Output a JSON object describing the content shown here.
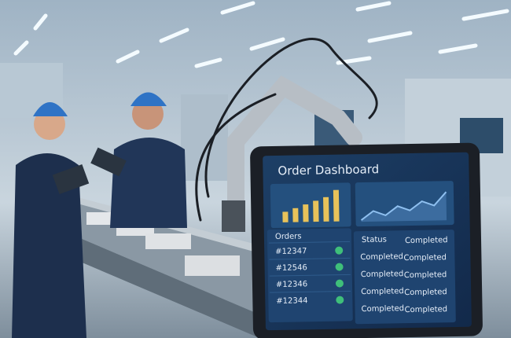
{
  "dashboard": {
    "title": "Order Dashboard",
    "bar_chart": {
      "values": [
        3,
        4,
        5,
        6,
        7,
        9
      ],
      "color": "#e8c25a"
    },
    "line_chart": {
      "values": [
        3,
        5,
        4,
        6,
        5,
        7,
        6,
        9
      ],
      "color": "#5b8fc7"
    },
    "orders": {
      "header": "Orders",
      "rows": [
        "#12347",
        "#12546",
        "#12346",
        "#12344"
      ]
    },
    "status": {
      "header": [
        "Status",
        "Completed"
      ],
      "rows": [
        [
          "Completed",
          "Completed"
        ],
        [
          "Completed",
          "Completed"
        ],
        [
          "Completed",
          "Completed"
        ],
        [
          "Completed",
          "Completed"
        ]
      ]
    }
  }
}
